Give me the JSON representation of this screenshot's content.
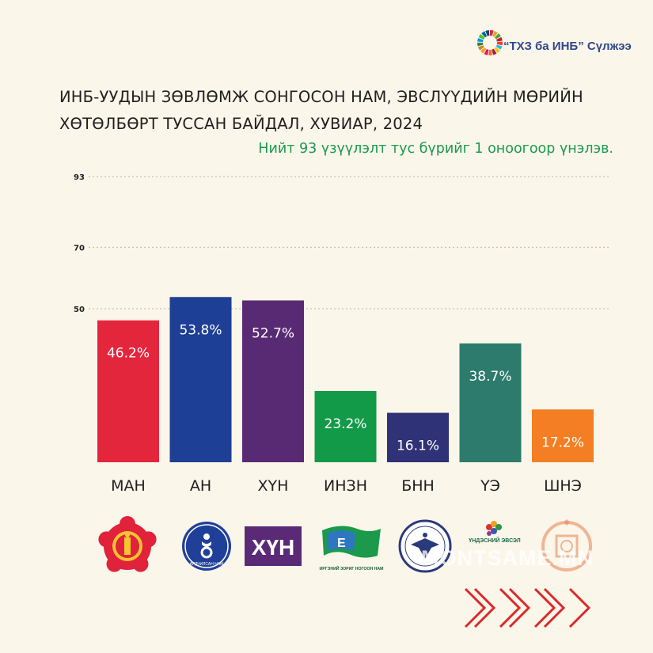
{
  "brand": {
    "name": "“ТХЗ ба ИНБ” Сүлжээ",
    "logo_icon": "sdg-wheel-icon"
  },
  "title": {
    "line1": "ИНБ-УУДЫН ЗӨВЛӨМЖ СОНГОСОН НАМ, ЭВСЛҮҮДИЙН МӨРИЙН",
    "line2": "ХӨТӨЛБӨРТ ТУССАН БАЙДАЛ, ХУВИАР, 2024"
  },
  "note": "Нийт 93 үзүүлэлт тус бүрийг 1 оноогоор үнэлэв.",
  "watermark": "MONTSAME.MN",
  "logos": [
    {
      "icon": "man-party-emblem-icon"
    },
    {
      "icon": "an-party-emblem-icon",
      "caption": "АРДЧИЛСАН НАМ"
    },
    {
      "icon": "khun-party-logo-icon",
      "text": "ХҮН"
    },
    {
      "icon": "inzn-party-logo-icon",
      "caption": "ИРГЭНИЙ ЗОРИГ НОГООН НАМ"
    },
    {
      "icon": "bnn-party-emblem-icon"
    },
    {
      "icon": "ue-coalition-logo-icon",
      "caption": "ҮНДЭСНИЙ ЭВСЭЛ"
    },
    {
      "icon": "shne-party-emblem-icon"
    }
  ],
  "chart_data": {
    "type": "bar",
    "categories": [
      "МАН",
      "АН",
      "ХҮН",
      "ИНЗН",
      "БНН",
      "ҮЭ",
      "ШНЭ"
    ],
    "values": [
      46.2,
      53.8,
      52.7,
      23.2,
      16.1,
      38.7,
      17.2
    ],
    "value_labels": [
      "46.2%",
      "53.8%",
      "52.7%",
      "23.2%",
      "16.1%",
      "38.7%",
      "17.2%"
    ],
    "colors": [
      "#e4263d",
      "#1e3f96",
      "#592a74",
      "#139a48",
      "#2f3276",
      "#2d7b6c",
      "#f47e23"
    ],
    "y_ticks": [
      50,
      70,
      93
    ],
    "ylim": [
      0,
      93
    ],
    "grid": true
  }
}
